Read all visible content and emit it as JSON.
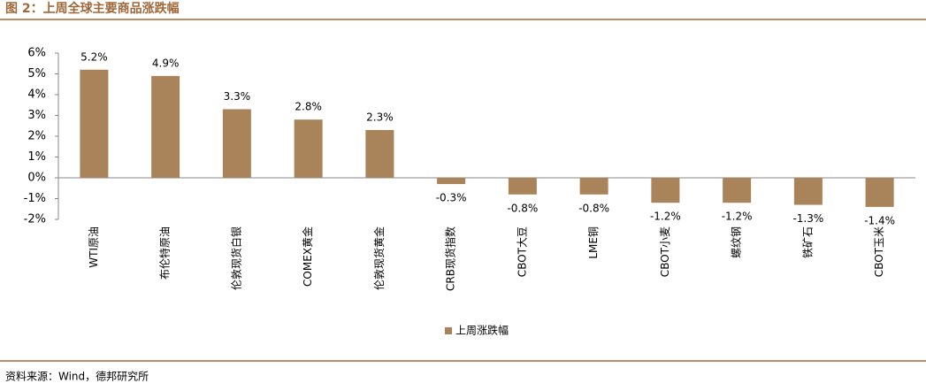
{
  "chart_data": {
    "type": "bar",
    "title": "图 2：上周全球主要商品涨跌幅",
    "source": "资料来源：Wind，德邦研究所",
    "categories": [
      "WTI原油",
      "布伦特原油",
      "伦敦现货白银",
      "COMEX黄金",
      "伦敦现货黄金",
      "CRB现货指数",
      "CBOT大豆",
      "LME铜",
      "CBOT小麦",
      "螺纹钢",
      "铁矿石",
      "CBOT玉米"
    ],
    "series": [
      {
        "name": "上周涨跌幅",
        "color": "#a9845a",
        "values": [
          5.2,
          4.9,
          3.3,
          2.8,
          2.3,
          -0.3,
          -0.8,
          -0.8,
          -1.2,
          -1.2,
          -1.3,
          -1.4
        ],
        "value_labels": [
          "5.2%",
          "4.9%",
          "3.3%",
          "2.8%",
          "2.3%",
          "-0.3%",
          "-0.8%",
          "-0.8%",
          "-1.2%",
          "-1.2%",
          "-1.3%",
          "-1.4%"
        ]
      }
    ],
    "ylim": [
      -2,
      6
    ],
    "yticks": [
      {
        "value": -2,
        "label": "-2%"
      },
      {
        "value": -1,
        "label": "-1%"
      },
      {
        "value": 0,
        "label": "0%"
      },
      {
        "value": 1,
        "label": "1%"
      },
      {
        "value": 2,
        "label": "2%"
      },
      {
        "value": 3,
        "label": "3%"
      },
      {
        "value": 4,
        "label": "4%"
      },
      {
        "value": 5,
        "label": "5%"
      },
      {
        "value": 6,
        "label": "6%"
      }
    ],
    "grid": false,
    "legend": "bottom"
  }
}
